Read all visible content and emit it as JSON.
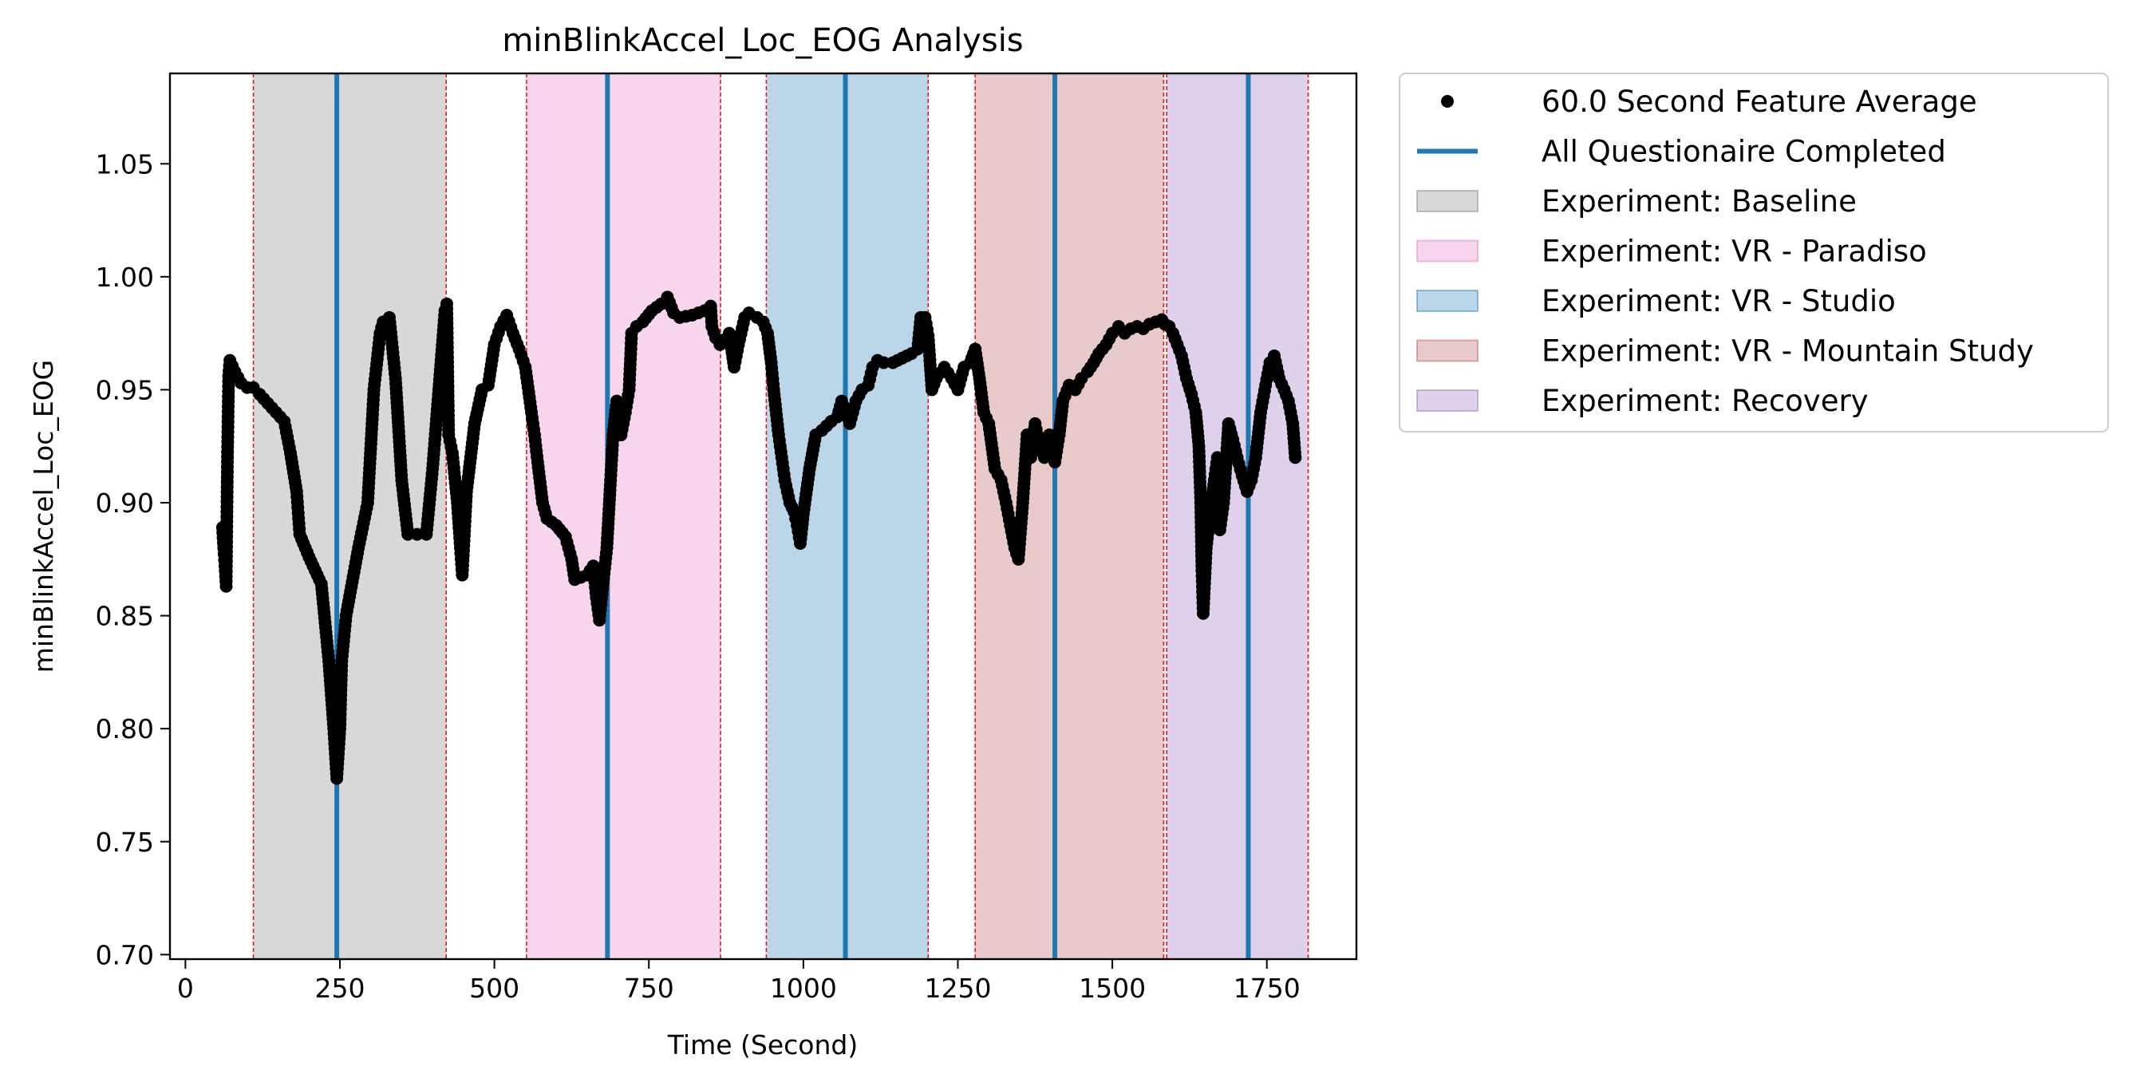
{
  "chart_data": {
    "type": "scatter",
    "title": "minBlinkAccel_Loc_EOG Analysis",
    "xlabel": "Time (Second)",
    "ylabel": "minBlinkAccel_Loc_EOG",
    "xlim": [
      -25,
      1895
    ],
    "ylim": [
      0.698,
      1.09
    ],
    "x_ticks": [
      0,
      250,
      500,
      750,
      1000,
      1250,
      1500,
      1750
    ],
    "x_tick_labels": [
      "0",
      "250",
      "500",
      "750",
      "1000",
      "1250",
      "1500",
      "1750"
    ],
    "y_ticks": [
      0.7,
      0.75,
      0.8,
      0.85,
      0.9,
      0.95,
      1.0,
      1.05
    ],
    "y_tick_labels": [
      "0.70",
      "0.75",
      "0.80",
      "0.85",
      "0.90",
      "0.95",
      "1.00",
      "1.05"
    ],
    "grid": false,
    "legend_position": "outside-right",
    "legend": [
      {
        "label": "60.0 Second Feature Average",
        "kind": "marker",
        "color": "#000000"
      },
      {
        "label": "All Questionaire Completed",
        "kind": "line",
        "color": "#1f77b4"
      },
      {
        "label": "Experiment: Baseline",
        "kind": "patch",
        "color": "#7f7f7f"
      },
      {
        "label": "Experiment: VR - Paradiso",
        "kind": "patch",
        "color": "#e377c2"
      },
      {
        "label": "Experiment: VR - Studio",
        "kind": "patch",
        "color": "#1f77b4"
      },
      {
        "label": "Experiment: VR - Mountain Study",
        "kind": "patch",
        "color": "#b5504f"
      },
      {
        "label": "Experiment: Recovery",
        "kind": "patch",
        "color": "#9467bd"
      }
    ],
    "phases": [
      {
        "name": "Experiment: Baseline",
        "start": 110,
        "end": 422,
        "color": "#7f7f7f"
      },
      {
        "name": "Experiment: VR - Paradiso",
        "start": 552,
        "end": 866,
        "color": "#e377c2"
      },
      {
        "name": "Experiment: VR - Studio",
        "start": 940,
        "end": 1202,
        "color": "#1f77b4"
      },
      {
        "name": "Experiment: VR - Mountain Study",
        "start": 1278,
        "end": 1583,
        "color": "#b5504f"
      },
      {
        "name": "Experiment: Recovery",
        "start": 1588,
        "end": 1817,
        "color": "#9467bd"
      }
    ],
    "phase_boundaries": [
      110,
      422,
      552,
      866,
      940,
      1202,
      1278,
      1583,
      1588,
      1817
    ],
    "questionnaire_completed": [
      245,
      683,
      1068,
      1407,
      1720
    ],
    "series": [
      {
        "name": "60.0 Second Feature Average",
        "color": "#000000",
        "points": [
          [
            60,
            0.889
          ],
          [
            62,
            0.88
          ],
          [
            64,
            0.872
          ],
          [
            66,
            0.863
          ],
          [
            68,
            0.918
          ],
          [
            70,
            0.956
          ],
          [
            72,
            0.963
          ],
          [
            80,
            0.958
          ],
          [
            90,
            0.953
          ],
          [
            100,
            0.951
          ],
          [
            110,
            0.951
          ],
          [
            120,
            0.948
          ],
          [
            140,
            0.942
          ],
          [
            160,
            0.936
          ],
          [
            170,
            0.922
          ],
          [
            180,
            0.905
          ],
          [
            185,
            0.886
          ],
          [
            200,
            0.876
          ],
          [
            220,
            0.864
          ],
          [
            232,
            0.83
          ],
          [
            240,
            0.8
          ],
          [
            245,
            0.778
          ],
          [
            250,
            0.8
          ],
          [
            253,
            0.83
          ],
          [
            260,
            0.85
          ],
          [
            280,
            0.88
          ],
          [
            295,
            0.9
          ],
          [
            305,
            0.95
          ],
          [
            315,
            0.975
          ],
          [
            320,
            0.98
          ],
          [
            330,
            0.982
          ],
          [
            340,
            0.955
          ],
          [
            350,
            0.91
          ],
          [
            360,
            0.886
          ],
          [
            375,
            0.886
          ],
          [
            390,
            0.886
          ],
          [
            400,
            0.915
          ],
          [
            410,
            0.95
          ],
          [
            420,
            0.985
          ],
          [
            423,
            0.988
          ],
          [
            426,
            0.93
          ],
          [
            432,
            0.922
          ],
          [
            440,
            0.9
          ],
          [
            445,
            0.88
          ],
          [
            448,
            0.868
          ],
          [
            455,
            0.905
          ],
          [
            468,
            0.935
          ],
          [
            480,
            0.95
          ],
          [
            490,
            0.952
          ],
          [
            500,
            0.97
          ],
          [
            510,
            0.978
          ],
          [
            520,
            0.983
          ],
          [
            530,
            0.975
          ],
          [
            540,
            0.968
          ],
          [
            550,
            0.96
          ],
          [
            560,
            0.94
          ],
          [
            565,
            0.93
          ],
          [
            570,
            0.918
          ],
          [
            578,
            0.9
          ],
          [
            585,
            0.893
          ],
          [
            600,
            0.89
          ],
          [
            615,
            0.885
          ],
          [
            625,
            0.875
          ],
          [
            630,
            0.866
          ],
          [
            650,
            0.868
          ],
          [
            660,
            0.872
          ],
          [
            665,
            0.858
          ],
          [
            670,
            0.848
          ],
          [
            675,
            0.862
          ],
          [
            682,
            0.88
          ],
          [
            688,
            0.91
          ],
          [
            692,
            0.93
          ],
          [
            698,
            0.945
          ],
          [
            705,
            0.93
          ],
          [
            712,
            0.94
          ],
          [
            718,
            0.95
          ],
          [
            722,
            0.975
          ],
          [
            730,
            0.978
          ],
          [
            740,
            0.98
          ],
          [
            755,
            0.985
          ],
          [
            770,
            0.988
          ],
          [
            780,
            0.991
          ],
          [
            790,
            0.984
          ],
          [
            800,
            0.982
          ],
          [
            820,
            0.983
          ],
          [
            840,
            0.985
          ],
          [
            850,
            0.987
          ],
          [
            852,
            0.978
          ],
          [
            858,
            0.973
          ],
          [
            865,
            0.97
          ],
          [
            870,
            0.972
          ],
          [
            880,
            0.975
          ],
          [
            888,
            0.96
          ],
          [
            895,
            0.97
          ],
          [
            905,
            0.982
          ],
          [
            912,
            0.984
          ],
          [
            925,
            0.982
          ],
          [
            935,
            0.98
          ],
          [
            942,
            0.975
          ],
          [
            948,
            0.962
          ],
          [
            952,
            0.95
          ],
          [
            960,
            0.93
          ],
          [
            965,
            0.92
          ],
          [
            970,
            0.91
          ],
          [
            978,
            0.9
          ],
          [
            985,
            0.896
          ],
          [
            990,
            0.89
          ],
          [
            995,
            0.882
          ],
          [
            1000,
            0.895
          ],
          [
            1010,
            0.915
          ],
          [
            1020,
            0.93
          ],
          [
            1030,
            0.932
          ],
          [
            1045,
            0.936
          ],
          [
            1055,
            0.938
          ],
          [
            1062,
            0.945
          ],
          [
            1068,
            0.942
          ],
          [
            1075,
            0.935
          ],
          [
            1085,
            0.945
          ],
          [
            1095,
            0.95
          ],
          [
            1105,
            0.952
          ],
          [
            1112,
            0.96
          ],
          [
            1120,
            0.963
          ],
          [
            1130,
            0.962
          ],
          [
            1145,
            0.962
          ],
          [
            1160,
            0.964
          ],
          [
            1175,
            0.966
          ],
          [
            1185,
            0.968
          ],
          [
            1190,
            0.982
          ],
          [
            1197,
            0.982
          ],
          [
            1202,
            0.974
          ],
          [
            1208,
            0.95
          ],
          [
            1215,
            0.955
          ],
          [
            1228,
            0.96
          ],
          [
            1240,
            0.955
          ],
          [
            1250,
            0.95
          ],
          [
            1260,
            0.96
          ],
          [
            1270,
            0.962
          ],
          [
            1278,
            0.968
          ],
          [
            1285,
            0.955
          ],
          [
            1292,
            0.94
          ],
          [
            1300,
            0.935
          ],
          [
            1310,
            0.915
          ],
          [
            1320,
            0.91
          ],
          [
            1328,
            0.9
          ],
          [
            1335,
            0.89
          ],
          [
            1342,
            0.88
          ],
          [
            1348,
            0.875
          ],
          [
            1355,
            0.9
          ],
          [
            1362,
            0.93
          ],
          [
            1368,
            0.92
          ],
          [
            1375,
            0.935
          ],
          [
            1382,
            0.925
          ],
          [
            1390,
            0.92
          ],
          [
            1398,
            0.93
          ],
          [
            1407,
            0.918
          ],
          [
            1414,
            0.93
          ],
          [
            1420,
            0.945
          ],
          [
            1430,
            0.952
          ],
          [
            1440,
            0.95
          ],
          [
            1450,
            0.955
          ],
          [
            1460,
            0.958
          ],
          [
            1470,
            0.962
          ],
          [
            1478,
            0.966
          ],
          [
            1490,
            0.97
          ],
          [
            1500,
            0.975
          ],
          [
            1510,
            0.978
          ],
          [
            1520,
            0.975
          ],
          [
            1530,
            0.977
          ],
          [
            1540,
            0.978
          ],
          [
            1550,
            0.977
          ],
          [
            1560,
            0.979
          ],
          [
            1570,
            0.98
          ],
          [
            1580,
            0.981
          ],
          [
            1585,
            0.979
          ],
          [
            1592,
            0.978
          ],
          [
            1598,
            0.975
          ],
          [
            1605,
            0.97
          ],
          [
            1612,
            0.965
          ],
          [
            1620,
            0.955
          ],
          [
            1628,
            0.948
          ],
          [
            1635,
            0.94
          ],
          [
            1640,
            0.925
          ],
          [
            1643,
            0.9
          ],
          [
            1645,
            0.87
          ],
          [
            1647,
            0.851
          ],
          [
            1652,
            0.88
          ],
          [
            1658,
            0.895
          ],
          [
            1665,
            0.91
          ],
          [
            1670,
            0.92
          ],
          [
            1674,
            0.888
          ],
          [
            1680,
            0.9
          ],
          [
            1688,
            0.935
          ],
          [
            1695,
            0.928
          ],
          [
            1702,
            0.92
          ],
          [
            1710,
            0.912
          ],
          [
            1718,
            0.905
          ],
          [
            1725,
            0.91
          ],
          [
            1732,
            0.92
          ],
          [
            1740,
            0.94
          ],
          [
            1748,
            0.952
          ],
          [
            1755,
            0.962
          ],
          [
            1762,
            0.965
          ],
          [
            1770,
            0.955
          ],
          [
            1778,
            0.95
          ],
          [
            1785,
            0.945
          ],
          [
            1792,
            0.935
          ],
          [
            1796,
            0.92
          ]
        ]
      }
    ]
  }
}
